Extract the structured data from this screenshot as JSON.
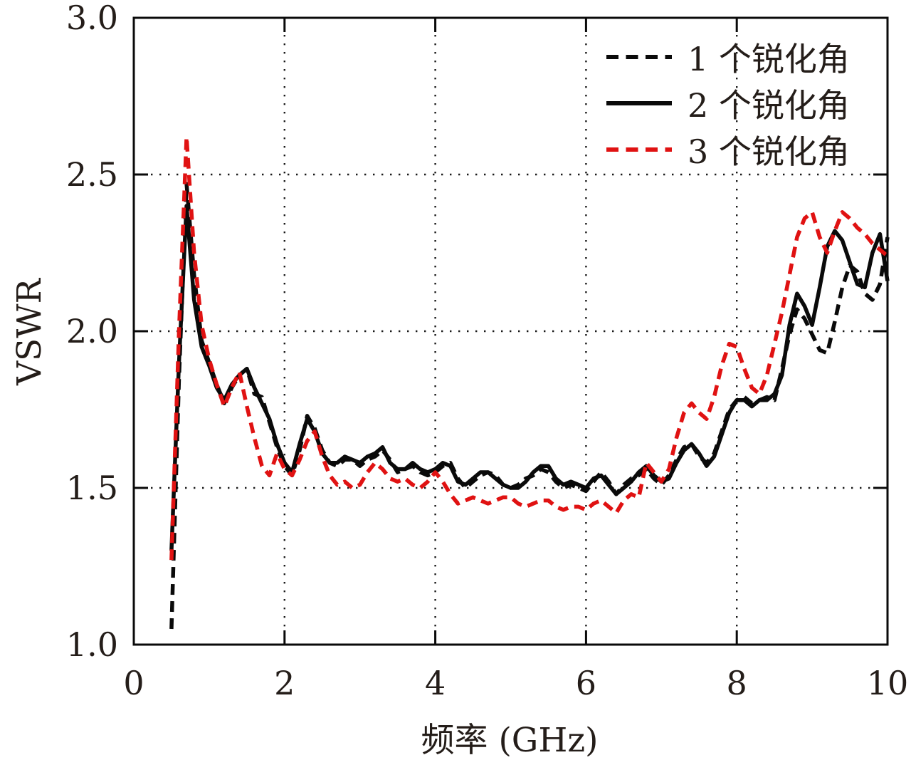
{
  "figure": {
    "background": "#ffffff",
    "text_color": "#241d19",
    "frame_color": "#0a0a0a",
    "grid_color": "#1a1a1a"
  },
  "chart_data": {
    "type": "line",
    "title": "",
    "xlabel": "频率 (GHz)",
    "ylabel": "VSWR",
    "xlim": [
      0,
      10
    ],
    "ylim": [
      1.0,
      3.0
    ],
    "grid": "dotted",
    "x_grid_values": [
      2,
      4,
      6,
      8
    ],
    "y_grid_values": [
      1.5,
      2.0,
      2.5
    ],
    "x_tick_values": [
      0,
      2,
      4,
      6,
      8,
      10
    ],
    "x_tick_labels": [
      "0",
      "2",
      "4",
      "6",
      "8",
      "10"
    ],
    "y_tick_values": [
      1.0,
      1.5,
      2.0,
      2.5,
      3.0
    ],
    "y_tick_labels": [
      "1.0",
      "1.5",
      "2.0",
      "2.5",
      "3.0"
    ],
    "legend_position": "top-right-inside",
    "x": [
      0.5,
      0.6,
      0.7,
      0.8,
      0.9,
      1.0,
      1.1,
      1.2,
      1.3,
      1.4,
      1.5,
      1.6,
      1.7,
      1.8,
      1.9,
      2.0,
      2.1,
      2.2,
      2.3,
      2.4,
      2.5,
      2.6,
      2.7,
      2.8,
      2.9,
      3.0,
      3.1,
      3.2,
      3.3,
      3.4,
      3.5,
      3.6,
      3.7,
      3.8,
      3.9,
      4.0,
      4.1,
      4.2,
      4.3,
      4.4,
      4.5,
      4.6,
      4.7,
      4.8,
      4.9,
      5.0,
      5.1,
      5.2,
      5.3,
      5.4,
      5.5,
      5.6,
      5.7,
      5.8,
      5.9,
      6.0,
      6.1,
      6.2,
      6.3,
      6.4,
      6.5,
      6.6,
      6.7,
      6.8,
      6.9,
      7.0,
      7.1,
      7.2,
      7.3,
      7.4,
      7.5,
      7.6,
      7.7,
      7.8,
      7.9,
      8.0,
      8.1,
      8.2,
      8.3,
      8.4,
      8.5,
      8.6,
      8.7,
      8.8,
      8.9,
      9.0,
      9.1,
      9.2,
      9.3,
      9.4,
      9.5,
      9.6,
      9.7,
      9.8,
      9.9,
      10.0
    ],
    "series": [
      {
        "name": "1 个锐化角",
        "color": "#0a0a0a",
        "dash": true,
        "values": [
          1.05,
          1.85,
          2.47,
          2.18,
          1.97,
          1.9,
          1.83,
          1.77,
          1.82,
          1.86,
          1.88,
          1.8,
          1.79,
          1.71,
          1.63,
          1.57,
          1.54,
          1.62,
          1.73,
          1.69,
          1.62,
          1.58,
          1.57,
          1.59,
          1.59,
          1.57,
          1.59,
          1.6,
          1.62,
          1.59,
          1.55,
          1.56,
          1.57,
          1.55,
          1.54,
          1.55,
          1.57,
          1.58,
          1.53,
          1.5,
          1.52,
          1.54,
          1.55,
          1.54,
          1.51,
          1.5,
          1.51,
          1.53,
          1.54,
          1.56,
          1.55,
          1.52,
          1.5,
          1.51,
          1.5,
          1.49,
          1.52,
          1.55,
          1.52,
          1.48,
          1.51,
          1.53,
          1.54,
          1.56,
          1.53,
          1.51,
          1.54,
          1.59,
          1.63,
          1.64,
          1.6,
          1.58,
          1.61,
          1.68,
          1.75,
          1.78,
          1.79,
          1.77,
          1.78,
          1.79,
          1.78,
          1.88,
          1.99,
          2.07,
          2.04,
          1.99,
          1.94,
          1.93,
          2.03,
          2.14,
          2.21,
          2.19,
          2.12,
          2.1,
          2.15,
          2.3
        ]
      },
      {
        "name": "2 个锐化角",
        "color": "#0a0a0a",
        "dash": false,
        "values": [
          1.3,
          1.9,
          2.4,
          2.1,
          1.95,
          1.89,
          1.82,
          1.78,
          1.83,
          1.86,
          1.88,
          1.82,
          1.77,
          1.72,
          1.64,
          1.58,
          1.55,
          1.64,
          1.72,
          1.68,
          1.61,
          1.58,
          1.58,
          1.6,
          1.59,
          1.58,
          1.6,
          1.61,
          1.63,
          1.58,
          1.56,
          1.56,
          1.58,
          1.56,
          1.55,
          1.56,
          1.58,
          1.57,
          1.52,
          1.51,
          1.53,
          1.55,
          1.55,
          1.53,
          1.51,
          1.5,
          1.5,
          1.52,
          1.55,
          1.57,
          1.57,
          1.53,
          1.51,
          1.52,
          1.51,
          1.5,
          1.53,
          1.54,
          1.51,
          1.48,
          1.5,
          1.52,
          1.55,
          1.57,
          1.54,
          1.52,
          1.53,
          1.58,
          1.62,
          1.64,
          1.61,
          1.57,
          1.6,
          1.67,
          1.74,
          1.78,
          1.78,
          1.76,
          1.78,
          1.78,
          1.8,
          1.86,
          2.02,
          2.12,
          2.08,
          2.02,
          2.14,
          2.27,
          2.32,
          2.29,
          2.22,
          2.15,
          2.14,
          2.25,
          2.31,
          2.16
        ]
      },
      {
        "name": "3 个锐化角",
        "color": "#e01212",
        "dash": true,
        "values": [
          1.27,
          2.0,
          2.62,
          2.25,
          2.02,
          1.91,
          1.83,
          1.76,
          1.82,
          1.87,
          1.76,
          1.66,
          1.57,
          1.54,
          1.61,
          1.56,
          1.54,
          1.59,
          1.65,
          1.68,
          1.6,
          1.54,
          1.51,
          1.52,
          1.5,
          1.51,
          1.55,
          1.58,
          1.56,
          1.53,
          1.52,
          1.53,
          1.51,
          1.5,
          1.52,
          1.55,
          1.52,
          1.48,
          1.45,
          1.46,
          1.47,
          1.46,
          1.45,
          1.46,
          1.47,
          1.47,
          1.45,
          1.44,
          1.45,
          1.46,
          1.46,
          1.44,
          1.43,
          1.44,
          1.44,
          1.43,
          1.45,
          1.46,
          1.44,
          1.42,
          1.46,
          1.48,
          1.47,
          1.58,
          1.55,
          1.52,
          1.56,
          1.66,
          1.74,
          1.77,
          1.74,
          1.72,
          1.79,
          1.89,
          1.96,
          1.95,
          1.88,
          1.82,
          1.8,
          1.86,
          1.96,
          2.06,
          2.18,
          2.3,
          2.36,
          2.38,
          2.3,
          2.25,
          2.32,
          2.38,
          2.36,
          2.33,
          2.31,
          2.28,
          2.26,
          2.24
        ]
      }
    ]
  }
}
